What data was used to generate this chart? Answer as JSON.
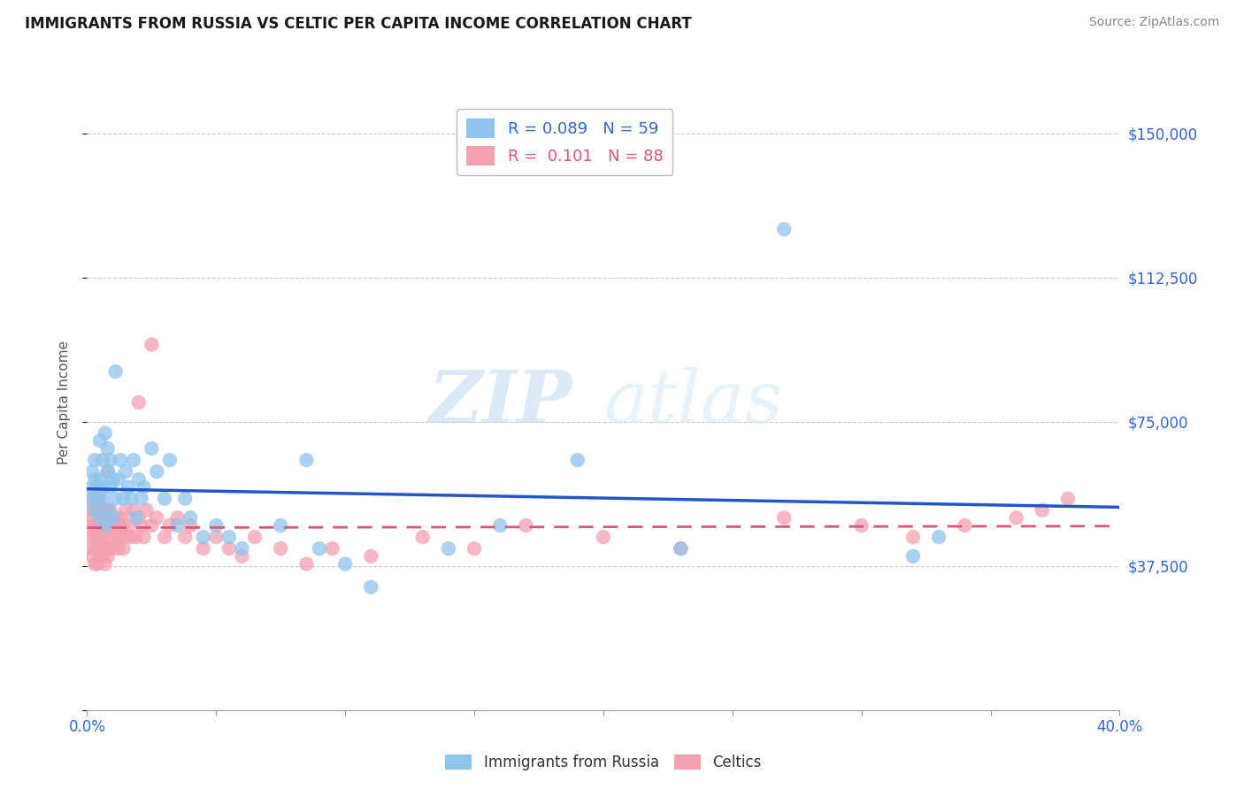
{
  "title": "IMMIGRANTS FROM RUSSIA VS CELTIC PER CAPITA INCOME CORRELATION CHART",
  "source": "Source: ZipAtlas.com",
  "ylabel": "Per Capita Income",
  "xlim": [
    0.0,
    0.4
  ],
  "ylim": [
    0,
    160000
  ],
  "yticks": [
    0,
    37500,
    75000,
    112500,
    150000
  ],
  "ytick_labels": [
    "",
    "$37,500",
    "$75,000",
    "$112,500",
    "$150,000"
  ],
  "bg_color": "#ffffff",
  "grid_color": "#cccccc",
  "watermark_zip": "ZIP",
  "watermark_atlas": "atlas",
  "legend_r_russia": "0.089",
  "legend_n_russia": "59",
  "legend_r_celtic": "0.101",
  "legend_n_celtic": "88",
  "russia_color": "#8FC4EC",
  "celtic_color": "#F4A0B0",
  "russia_line_color": "#2255CC",
  "celtic_line_color": "#DD5577",
  "title_color": "#1a1a1a",
  "axis_label_color": "#3366CC",
  "russia_scatter_x": [
    0.001,
    0.002,
    0.002,
    0.003,
    0.003,
    0.003,
    0.004,
    0.004,
    0.005,
    0.005,
    0.005,
    0.006,
    0.006,
    0.007,
    0.007,
    0.007,
    0.008,
    0.008,
    0.008,
    0.009,
    0.009,
    0.01,
    0.01,
    0.011,
    0.011,
    0.012,
    0.013,
    0.014,
    0.015,
    0.016,
    0.017,
    0.018,
    0.019,
    0.02,
    0.021,
    0.022,
    0.025,
    0.027,
    0.03,
    0.032,
    0.035,
    0.038,
    0.04,
    0.045,
    0.05,
    0.055,
    0.06,
    0.075,
    0.085,
    0.09,
    0.1,
    0.11,
    0.14,
    0.16,
    0.19,
    0.23,
    0.27,
    0.32,
    0.33
  ],
  "russia_scatter_y": [
    55000,
    58000,
    62000,
    65000,
    52000,
    60000,
    58000,
    55000,
    70000,
    60000,
    50000,
    65000,
    55000,
    72000,
    58000,
    48000,
    68000,
    62000,
    52000,
    58000,
    65000,
    60000,
    50000,
    88000,
    55000,
    60000,
    65000,
    55000,
    62000,
    58000,
    55000,
    65000,
    50000,
    60000,
    55000,
    58000,
    68000,
    62000,
    55000,
    65000,
    48000,
    55000,
    50000,
    45000,
    48000,
    45000,
    42000,
    48000,
    65000,
    42000,
    38000,
    32000,
    42000,
    48000,
    65000,
    42000,
    125000,
    40000,
    45000
  ],
  "celtic_scatter_x": [
    0.001,
    0.001,
    0.001,
    0.002,
    0.002,
    0.002,
    0.002,
    0.003,
    0.003,
    0.003,
    0.003,
    0.003,
    0.004,
    0.004,
    0.004,
    0.004,
    0.005,
    0.005,
    0.005,
    0.005,
    0.005,
    0.006,
    0.006,
    0.006,
    0.006,
    0.007,
    0.007,
    0.007,
    0.007,
    0.008,
    0.008,
    0.008,
    0.008,
    0.009,
    0.009,
    0.009,
    0.01,
    0.01,
    0.01,
    0.011,
    0.011,
    0.012,
    0.012,
    0.013,
    0.013,
    0.014,
    0.014,
    0.015,
    0.015,
    0.016,
    0.017,
    0.018,
    0.019,
    0.02,
    0.021,
    0.022,
    0.023,
    0.025,
    0.027,
    0.03,
    0.032,
    0.035,
    0.038,
    0.04,
    0.045,
    0.05,
    0.055,
    0.06,
    0.065,
    0.075,
    0.085,
    0.095,
    0.11,
    0.13,
    0.15,
    0.17,
    0.2,
    0.23,
    0.27,
    0.3,
    0.32,
    0.34,
    0.36,
    0.37,
    0.38,
    0.02,
    0.025,
    0.008
  ],
  "celtic_scatter_y": [
    48000,
    42000,
    52000,
    45000,
    55000,
    40000,
    50000,
    48000,
    42000,
    52000,
    38000,
    45000,
    48000,
    42000,
    52000,
    38000,
    50000,
    45000,
    55000,
    40000,
    48000,
    45000,
    52000,
    40000,
    48000,
    50000,
    42000,
    52000,
    38000,
    48000,
    42000,
    52000,
    40000,
    48000,
    45000,
    52000,
    50000,
    42000,
    48000,
    50000,
    45000,
    48000,
    42000,
    50000,
    45000,
    48000,
    42000,
    52000,
    45000,
    48000,
    45000,
    52000,
    45000,
    50000,
    48000,
    45000,
    52000,
    48000,
    50000,
    45000,
    48000,
    50000,
    45000,
    48000,
    42000,
    45000,
    42000,
    40000,
    45000,
    42000,
    38000,
    42000,
    40000,
    45000,
    42000,
    48000,
    45000,
    42000,
    50000,
    48000,
    45000,
    48000,
    50000,
    52000,
    55000,
    80000,
    95000,
    62000
  ]
}
